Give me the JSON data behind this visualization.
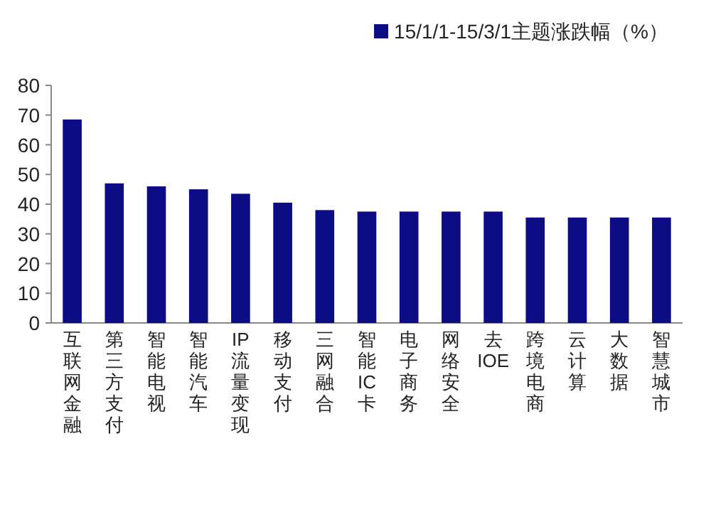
{
  "chart_data": {
    "type": "bar",
    "categories": [
      "互联网金融",
      "第三方支付",
      "智能电视",
      "智能汽车",
      "IP流量变现",
      "移动支付",
      "三网融合",
      "智能IC卡",
      "电子商务",
      "网络安全",
      "去IOE",
      "跨境电商",
      "云计算",
      "大数据",
      "智慧城市"
    ],
    "series": [
      {
        "name": "15/1/1-15/3/1主题涨跌幅（%）",
        "color": "#0c0c84",
        "values": [
          68.5,
          47,
          46,
          45,
          43.5,
          40.5,
          38,
          37.5,
          37.5,
          37.5,
          37.5,
          35.5,
          35.5,
          35.5,
          35.5
        ]
      }
    ],
    "ylim": [
      0,
      80
    ],
    "yticks": [
      0,
      10,
      20,
      30,
      40,
      50,
      60,
      70,
      80
    ],
    "legend": "top right",
    "grid": false
  }
}
